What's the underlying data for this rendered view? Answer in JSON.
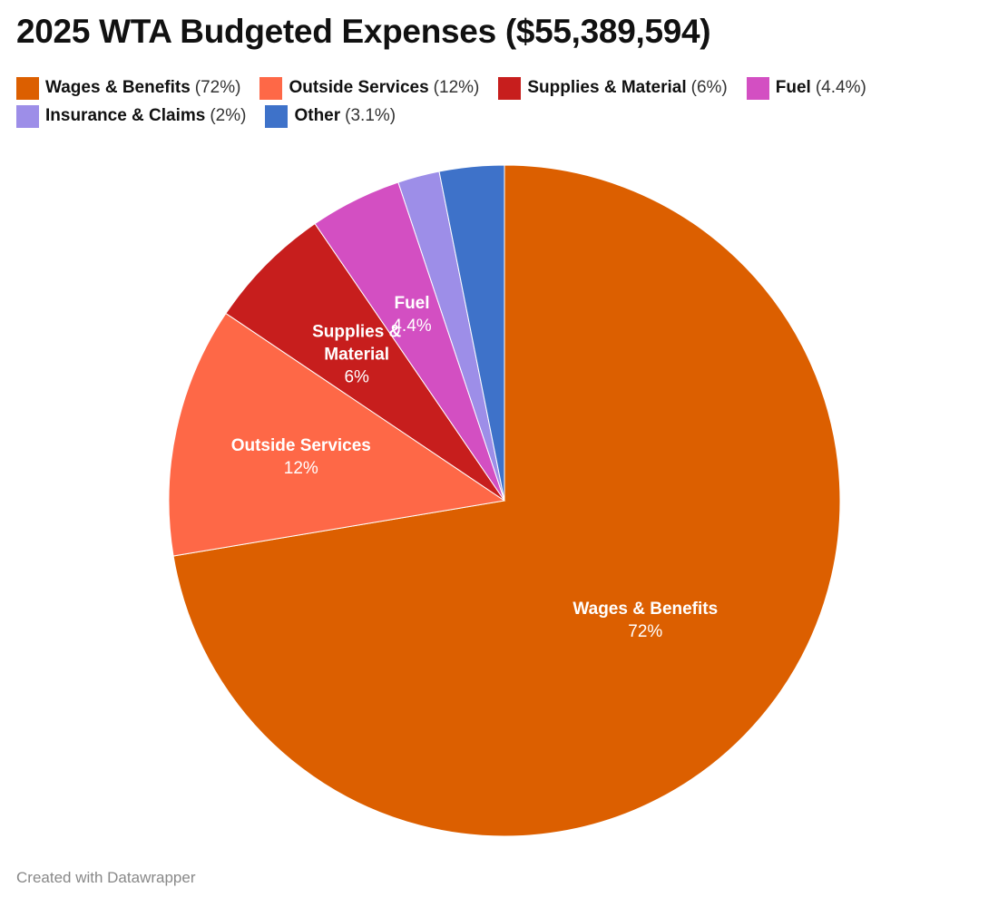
{
  "title": "2025 WTA Budgeted Expenses ($55,389,594)",
  "footer": "Created with Datawrapper",
  "chart_data": {
    "type": "pie",
    "title": "2025 WTA Budgeted Expenses ($55,389,594)",
    "total_label": "$55,389,594",
    "legend_position": "top",
    "slices": [
      {
        "name": "Wages & Benefits",
        "pct_label": "72%",
        "value": 72,
        "color": "#dc5f00",
        "label_lines": [
          "Wages & Benefits"
        ],
        "show_label": true
      },
      {
        "name": "Outside Services",
        "pct_label": "12%",
        "value": 12,
        "color": "#fe6847",
        "label_lines": [
          "Outside Services"
        ],
        "show_label": true
      },
      {
        "name": "Supplies & Material",
        "pct_label": "6%",
        "value": 6,
        "color": "#c71e1d",
        "label_lines": [
          "Supplies &",
          "Material"
        ],
        "show_label": true
      },
      {
        "name": "Fuel",
        "pct_label": "4.4%",
        "value": 4.4,
        "color": "#d34fc2",
        "label_lines": [
          "Fuel"
        ],
        "show_label": true
      },
      {
        "name": "Insurance & Claims",
        "pct_label": "2%",
        "value": 2,
        "color": "#9d8ee8",
        "label_lines": [
          "Insurance & Claims"
        ],
        "show_label": false
      },
      {
        "name": "Other",
        "pct_label": "3.1%",
        "value": 3.1,
        "color": "#3e72c9",
        "label_lines": [
          "Other"
        ],
        "show_label": false
      }
    ]
  }
}
